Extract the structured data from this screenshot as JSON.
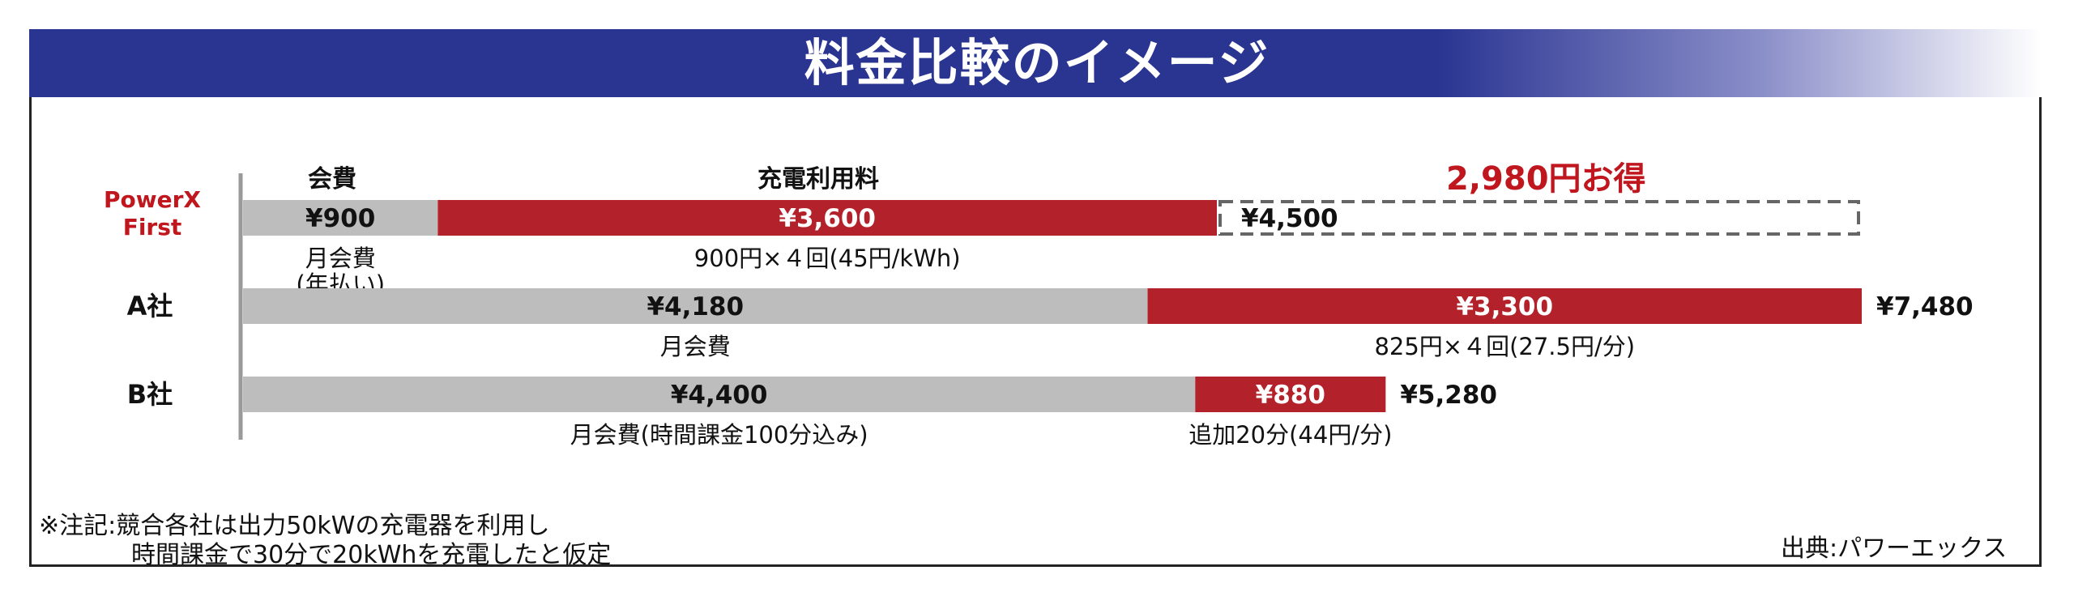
{
  "title": "料金比較のイメージ",
  "column_headers": {
    "membership": "会費",
    "charging": "充電利用料"
  },
  "savings_label": "2,980円お得",
  "brand_label_line1": "PowerX",
  "brand_label_line2": "First",
  "colors": {
    "membership": "#bdbdbd",
    "charging": "#b3222a",
    "header": "#2a3592",
    "savings": "#c0161e"
  },
  "chart_data": {
    "type": "bar",
    "stacked": true,
    "orientation": "horizontal",
    "categories": [
      "PowerX First",
      "A社",
      "B社"
    ],
    "series": [
      {
        "name": "会費",
        "values": [
          900,
          4180,
          4400
        ]
      },
      {
        "name": "充電利用料",
        "values": [
          3600,
          3300,
          880
        ]
      }
    ],
    "segment_labels": [
      [
        "¥900",
        "¥3,600"
      ],
      [
        "¥4,180",
        "¥3,300"
      ],
      [
        "¥4,400",
        "¥880"
      ]
    ],
    "totals": [
      4500,
      7480,
      5280
    ],
    "total_labels": [
      "¥4,500",
      "¥7,480",
      "¥5,280"
    ],
    "sub_labels": [
      [
        "月会費\n(年払い)",
        "900円×４回(45円/kWh)"
      ],
      [
        "月会費",
        "825円×４回(27.5円/分)"
      ],
      [
        "月会費(時間課金100分込み)",
        "追加20分(44円/分)"
      ]
    ],
    "savings": {
      "value": 2980,
      "label": "2,980円お得",
      "reference_total": 7480
    },
    "xlim": [
      0,
      7480
    ]
  },
  "footnote_line1": "※注記:競合各社は出力50kWの充電器を利用し",
  "footnote_line2": "時間課金で30分で20kWhを充電したと仮定",
  "source": "出典:パワーエックス"
}
